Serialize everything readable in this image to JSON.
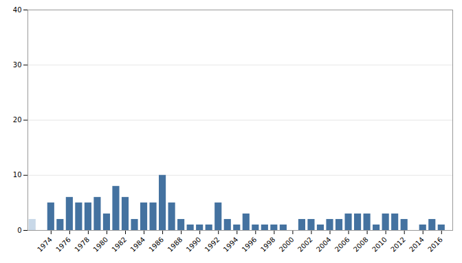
{
  "chart_data": {
    "type": "bar",
    "x": [
      1972,
      1974,
      1975,
      1976,
      1977,
      1978,
      1979,
      1980,
      1981,
      1982,
      1983,
      1984,
      1985,
      1986,
      1987,
      1988,
      1989,
      1990,
      1991,
      1992,
      1993,
      1994,
      1995,
      1996,
      1997,
      1998,
      1999,
      2001,
      2002,
      2003,
      2004,
      2005,
      2006,
      2007,
      2008,
      2009,
      2010,
      2011,
      2012,
      2014,
      2015,
      2016
    ],
    "values": [
      2,
      5,
      2,
      6,
      5,
      5,
      6,
      3,
      8,
      6,
      2,
      5,
      5,
      10,
      5,
      2,
      1,
      1,
      1,
      5,
      2,
      1,
      3,
      1,
      1,
      1,
      1,
      2,
      2,
      1,
      2,
      2,
      3,
      3,
      3,
      1,
      3,
      3,
      2,
      1,
      2,
      1
    ],
    "colors": [
      "#c8d8e8",
      "#4472a0",
      "#4472a0",
      "#4472a0",
      "#4472a0",
      "#4472a0",
      "#4472a0",
      "#4472a0",
      "#4472a0",
      "#4472a0",
      "#4472a0",
      "#4472a0",
      "#4472a0",
      "#4472a0",
      "#4472a0",
      "#4472a0",
      "#4472a0",
      "#4472a0",
      "#4472a0",
      "#4472a0",
      "#4472a0",
      "#4472a0",
      "#4472a0",
      "#4472a0",
      "#4472a0",
      "#4472a0",
      "#4472a0",
      "#4472a0",
      "#4472a0",
      "#4472a0",
      "#4472a0",
      "#4472a0",
      "#4472a0",
      "#4472a0",
      "#4472a0",
      "#4472a0",
      "#4472a0",
      "#4472a0",
      "#4472a0",
      "#4472a0",
      "#4472a0",
      "#4472a0"
    ],
    "xlim": [
      1971.5,
      2017.2
    ],
    "xticks": [
      1974,
      1976,
      1978,
      1980,
      1982,
      1984,
      1986,
      1988,
      1990,
      1992,
      1994,
      1996,
      1998,
      2000,
      2002,
      2004,
      2006,
      2008,
      2010,
      2012,
      2014,
      2016
    ],
    "ylim": [
      0,
      40
    ],
    "yticks": [
      0,
      10,
      20,
      30,
      40
    ],
    "grid": true
  }
}
